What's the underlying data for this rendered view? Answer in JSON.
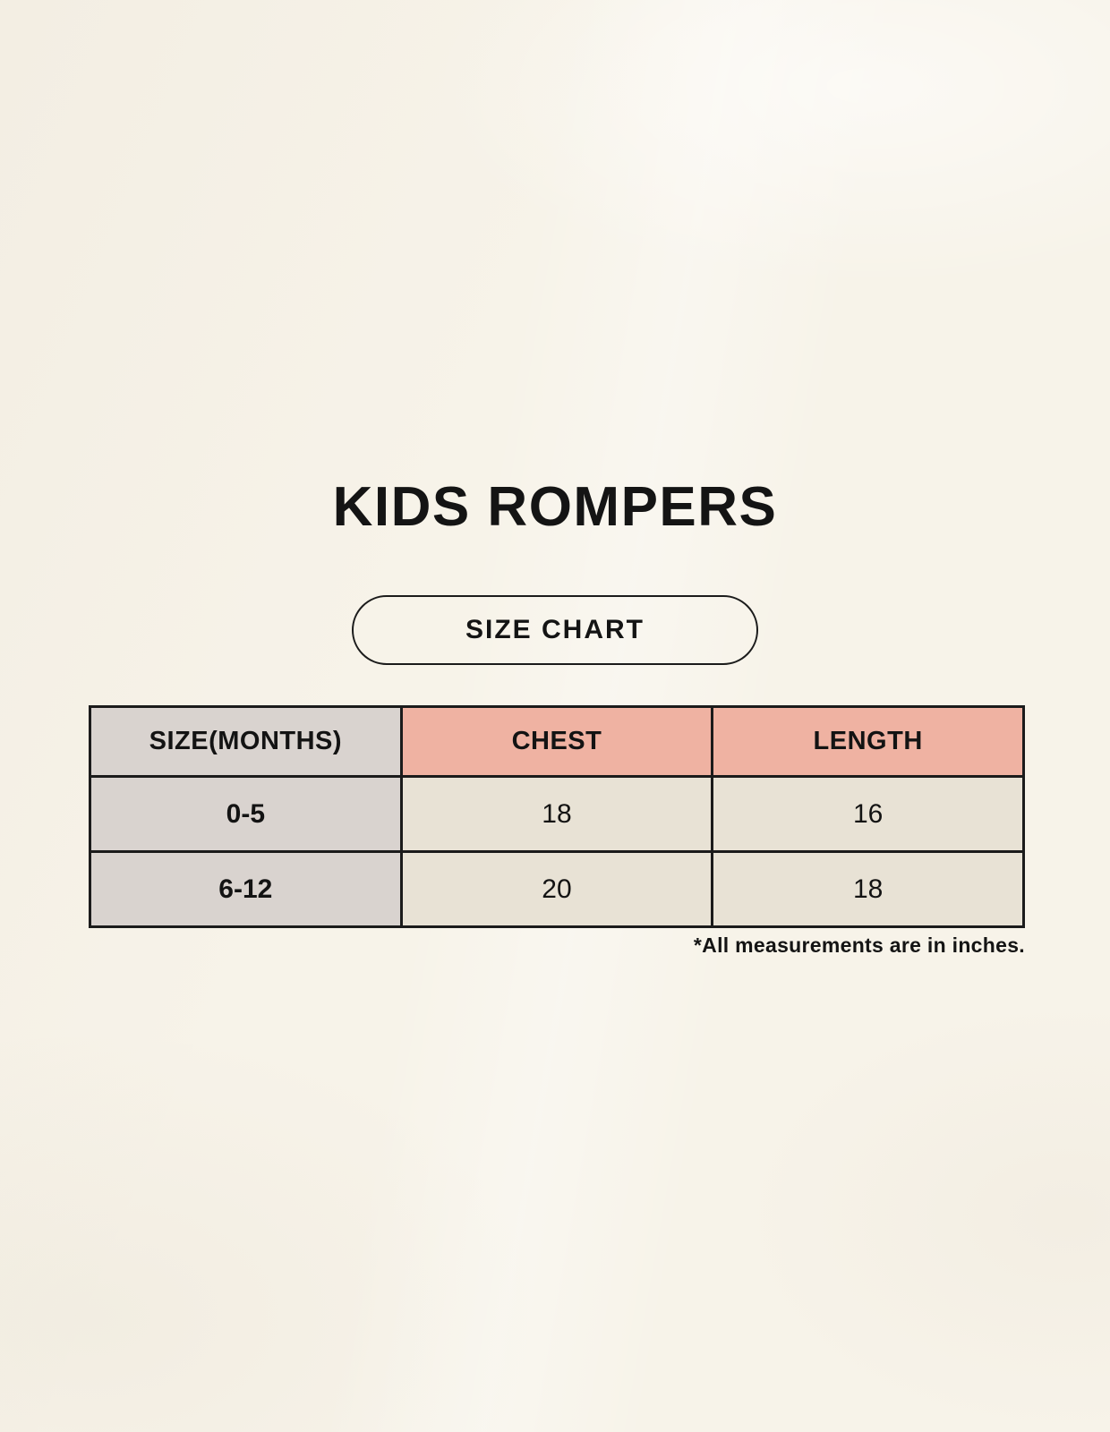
{
  "page": {
    "title": "KIDS ROMPERS",
    "badge": "SIZE CHART",
    "footnote": "*All measurements are in inches."
  },
  "colors": {
    "background": "#f7f3e9",
    "accent_header": "#efb2a2",
    "size_column": "#d9d3cf",
    "data_cell": "#e8e2d5",
    "border": "#1b1b1b",
    "text": "#141414"
  },
  "table": {
    "headers": [
      {
        "label": "SIZE(MONTHS)"
      },
      {
        "label": "CHEST"
      },
      {
        "label": "LENGTH"
      }
    ],
    "rows": [
      {
        "size": "0-5",
        "chest": "18",
        "length": "16"
      },
      {
        "size": "6-12",
        "chest": "20",
        "length": "18"
      }
    ]
  },
  "chart_data": {
    "type": "table",
    "title": "KIDS ROMPERS",
    "subtitle": "SIZE CHART",
    "columns": [
      "SIZE(MONTHS)",
      "CHEST",
      "LENGTH"
    ],
    "rows": [
      [
        "0-5",
        "18",
        "16"
      ],
      [
        "6-12",
        "20",
        "18"
      ]
    ],
    "units": "inches",
    "footnote": "*All measurements are in inches."
  }
}
